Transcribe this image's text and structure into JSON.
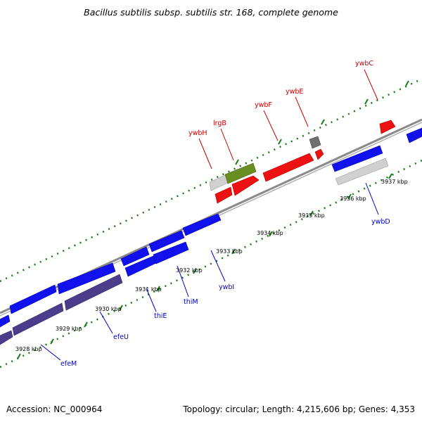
{
  "title": "Bacillus subtilis subsp. subtilis str. 168, complete genome",
  "footer": {
    "accession": "Accession: NC_000964",
    "stats": "Topology: circular; Length: 4,215,606 bp; Genes: 4,353"
  },
  "map": {
    "colors": {
      "forward_gene": "#1010ee",
      "reverse_gene": "#ee1010",
      "rna": "#6b8e23",
      "pseudo": "#c8c8c8",
      "dark": "#707070",
      "backbone": "#888888",
      "tick": "#1a7a1a",
      "label_forward": "#0000cc",
      "label_reverse": "#cc0000",
      "operon": "#4b3c8c"
    },
    "tick_labels": [
      "3928 kbp",
      "3929 kbp",
      "3930 kbp",
      "3931 kbp",
      "3932 kbp",
      "3933 kbp",
      "3934 kbp",
      "3935 kbp",
      "3936 kbp",
      "3937 kbp"
    ],
    "gene_labels_forward": [
      "efeM",
      "efeU",
      "thiE",
      "thiM",
      "ywbI",
      "ywbD"
    ],
    "gene_labels_reverse": [
      "ywbH",
      "lrgB",
      "ywbF",
      "ywbE",
      "ywbC"
    ]
  }
}
